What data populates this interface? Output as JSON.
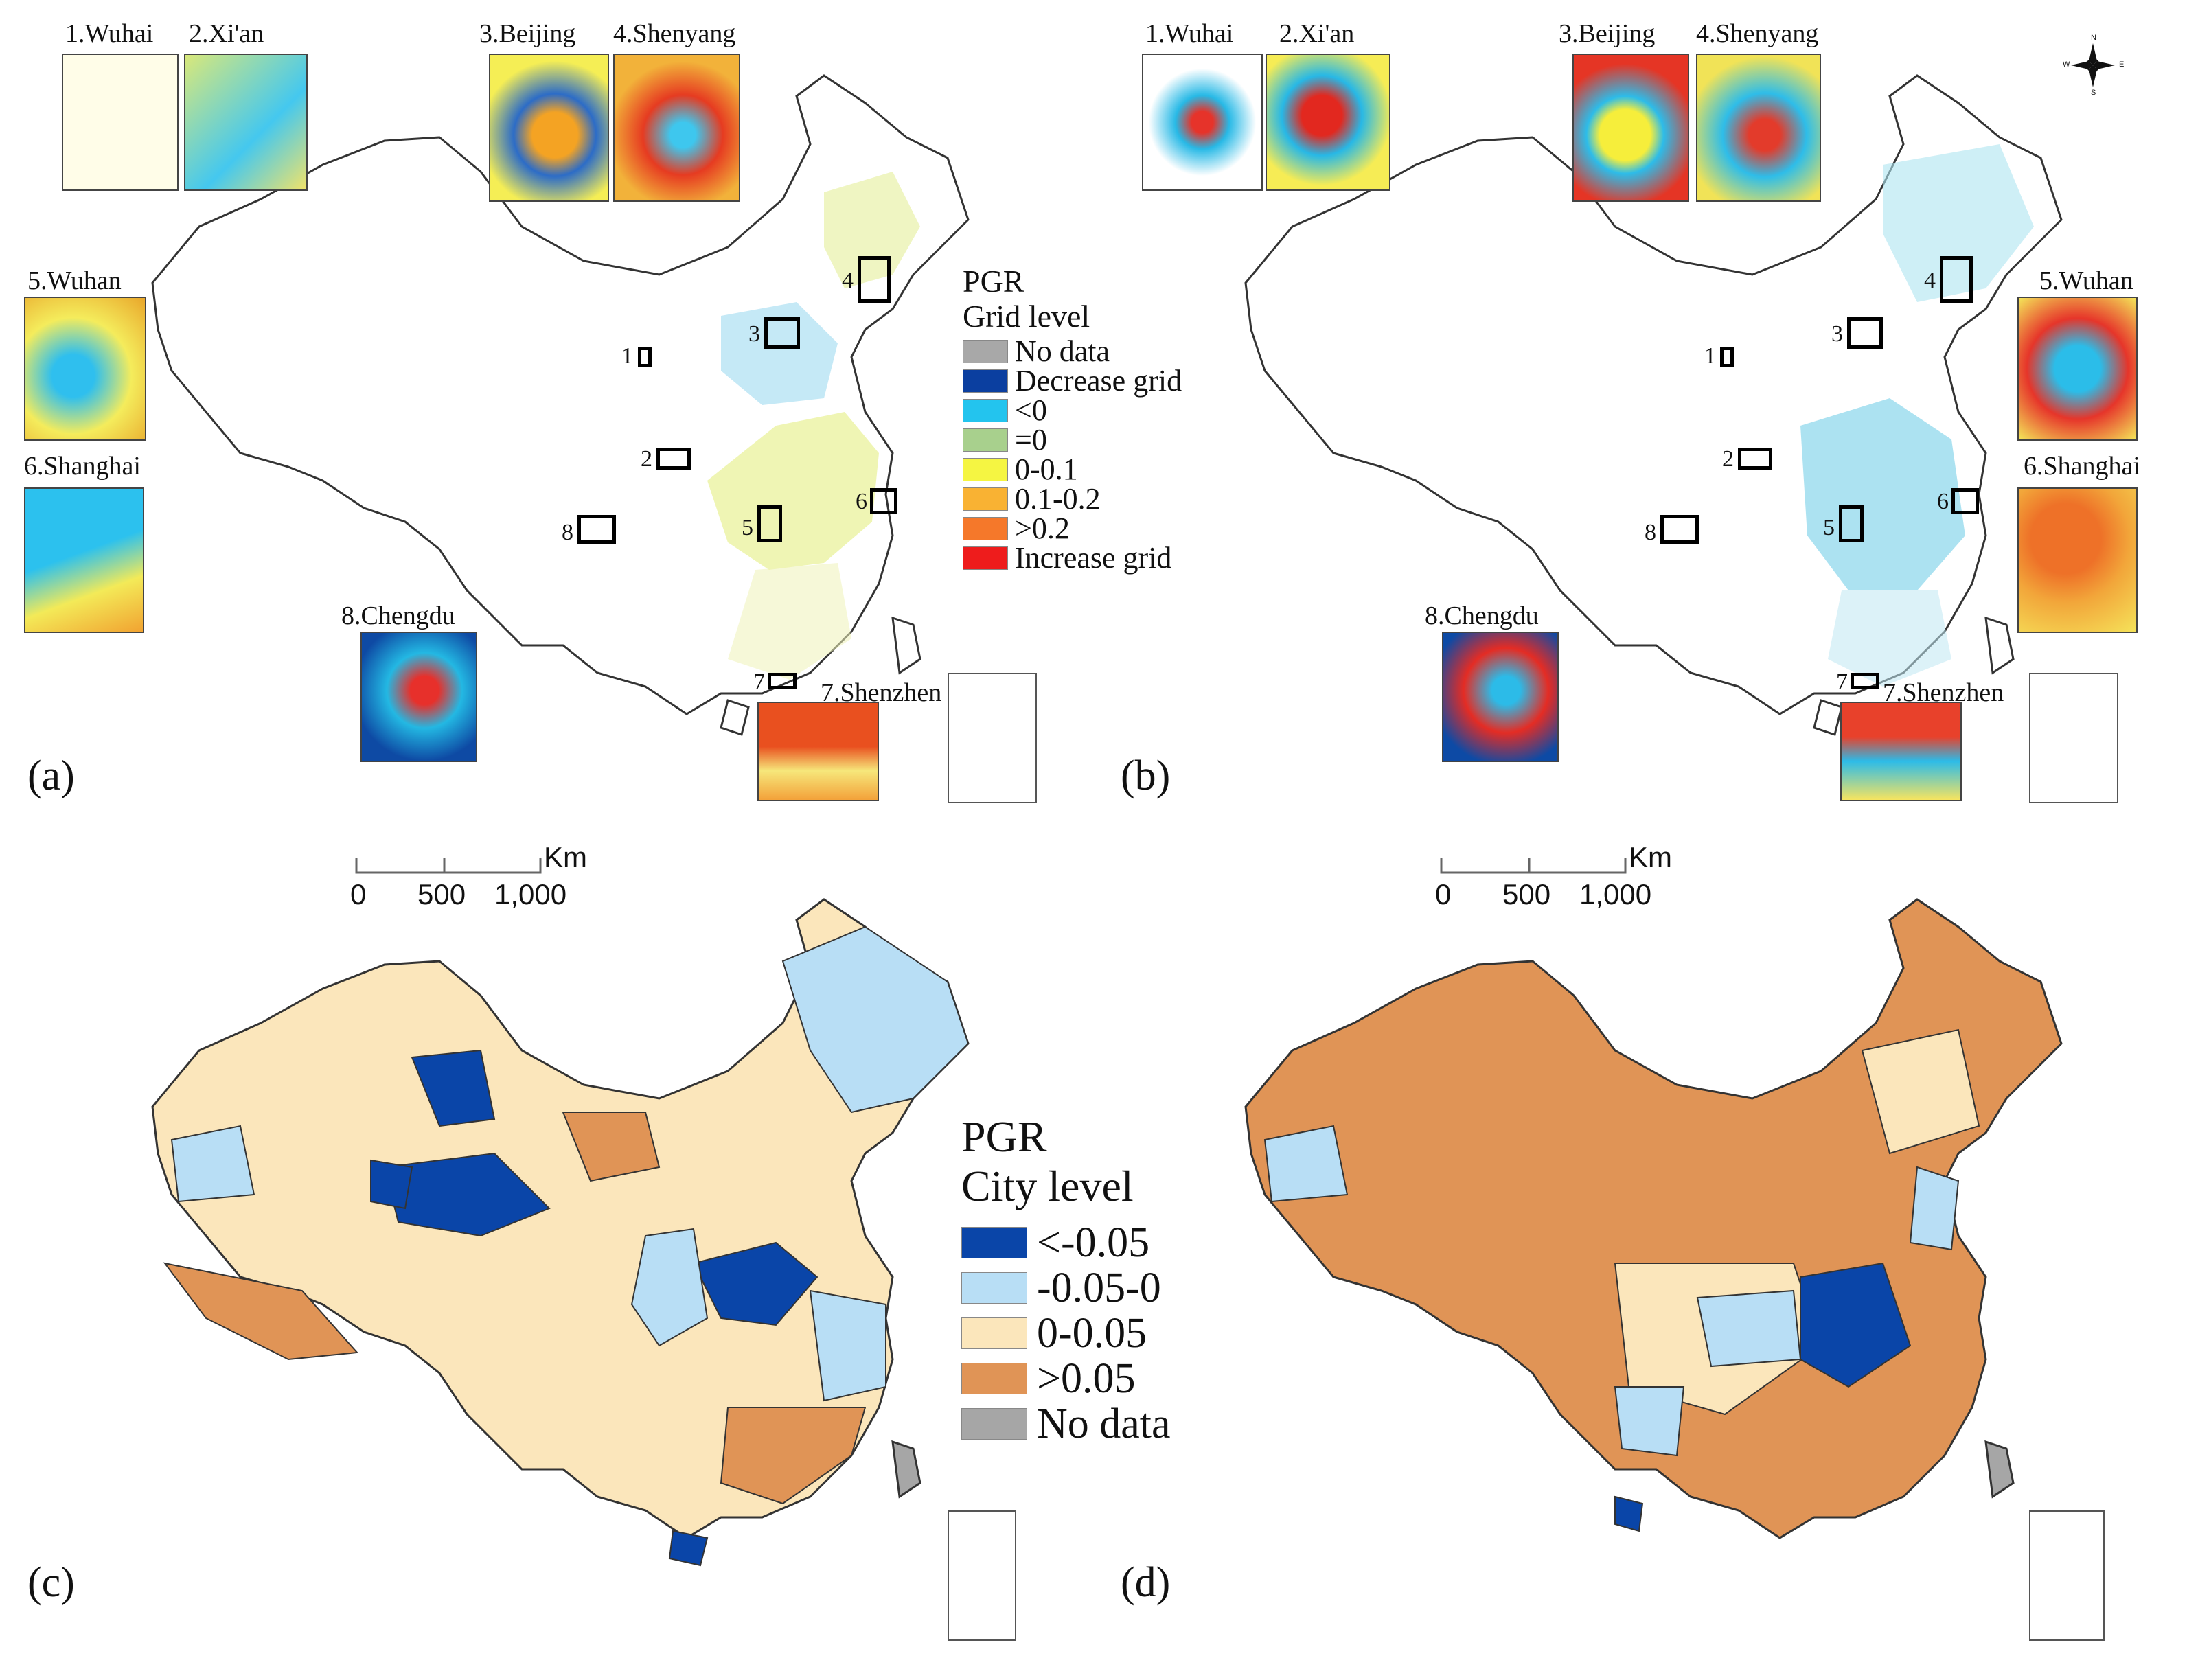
{
  "panels": [
    {
      "id": "a",
      "label": "(a)"
    },
    {
      "id": "b",
      "label": "(b)"
    },
    {
      "id": "c",
      "label": "(c)"
    },
    {
      "id": "d",
      "label": "(d)"
    }
  ],
  "insets_a": [
    {
      "num": "1",
      "title": "1.Wuhai"
    },
    {
      "num": "2",
      "title": "2.Xi'an"
    },
    {
      "num": "3",
      "title": "3.Beijing"
    },
    {
      "num": "4",
      "title": "4.Shenyang"
    },
    {
      "num": "5",
      "title": "5.Wuhan"
    },
    {
      "num": "6",
      "title": "6.Shanghai"
    },
    {
      "num": "7",
      "title": "7.Shenzhen"
    },
    {
      "num": "8",
      "title": "8.Chengdu"
    }
  ],
  "insets_b": [
    {
      "num": "1",
      "title": "1.Wuhai"
    },
    {
      "num": "2",
      "title": "2.Xi'an"
    },
    {
      "num": "3",
      "title": "3.Beijing"
    },
    {
      "num": "4",
      "title": "4.Shenyang"
    },
    {
      "num": "5",
      "title": "5.Wuhan"
    },
    {
      "num": "6",
      "title": "6.Shanghai"
    },
    {
      "num": "7",
      "title": "7.Shenzhen"
    },
    {
      "num": "8",
      "title": "8.Chengdu"
    }
  ],
  "grid_legend": {
    "title1": "PGR",
    "title2": "Grid level",
    "items": [
      {
        "label": "No data",
        "color": "#a8a8a8"
      },
      {
        "label": "Decrease grid",
        "color": "#0b3fa0"
      },
      {
        "label": "<0",
        "color": "#23c4ee"
      },
      {
        "label": "=0",
        "color": "#a8d08d"
      },
      {
        "label": "0-0.1",
        "color": "#f5f542"
      },
      {
        "label": "0.1-0.2",
        "color": "#f9b233"
      },
      {
        "label": ">0.2",
        "color": "#f5782a"
      },
      {
        "label": "Increase grid",
        "color": "#ee1c1c"
      }
    ]
  },
  "city_legend": {
    "title1": "PGR",
    "title2": "City level",
    "items": [
      {
        "label": "<-0.05",
        "color": "#0a45a8"
      },
      {
        "label": "-0.05-0",
        "color": "#b8def5"
      },
      {
        "label": "0-0.05",
        "color": "#fbe6bb"
      },
      {
        "label": ">0.05",
        "color": "#e09456"
      },
      {
        "label": "No data",
        "color": "#a6a6a6"
      }
    ]
  },
  "scalebar": {
    "unit": "Km",
    "ticks": [
      "0",
      "500",
      "1,000"
    ]
  },
  "compass": {
    "n": "N",
    "s": "S",
    "e": "E",
    "w": "W"
  },
  "colors": {
    "outline": "#333333",
    "grid_bg": "#ffffff"
  }
}
